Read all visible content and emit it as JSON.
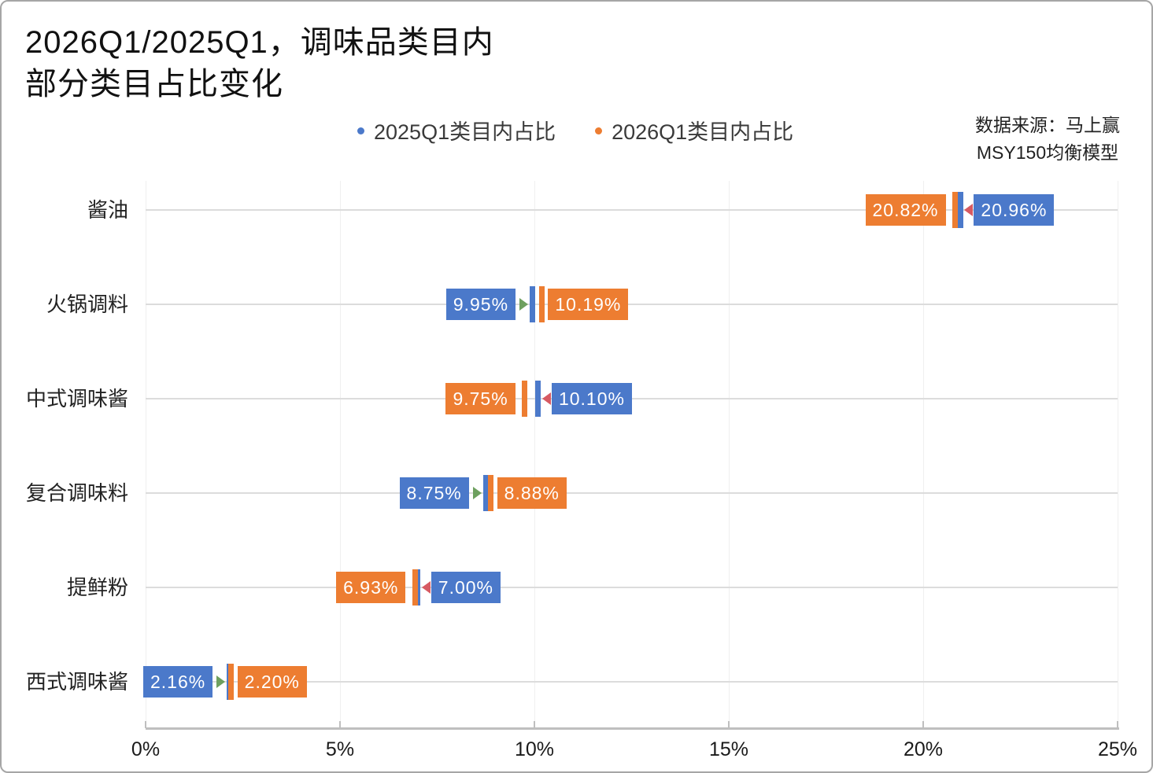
{
  "title": {
    "line1": "2026Q1/2025Q1，调味品类目内",
    "line2": "部分类目占比变化"
  },
  "legend": {
    "items": [
      {
        "label": "2025Q1类目内占比",
        "color": "#4b79ca"
      },
      {
        "label": "2026Q1类目内占比",
        "color": "#ed7d31"
      }
    ]
  },
  "source": {
    "line1": "数据来源：马上赢",
    "line2": "MSY150均衡模型"
  },
  "chart_data": {
    "type": "dumbbell",
    "title": "2026Q1/2025Q1，调味品类目内部分类目占比变化",
    "categories": [
      "酱油",
      "火锅调料",
      "中式调味酱",
      "复合调味料",
      "提鲜粉",
      "西式调味酱"
    ],
    "series": [
      {
        "name": "2025Q1类目内占比",
        "color": "#4b79ca",
        "values": [
          20.96,
          9.95,
          10.1,
          8.75,
          7.0,
          2.16
        ]
      },
      {
        "name": "2026Q1类目内占比",
        "color": "#ed7d31",
        "values": [
          20.82,
          10.19,
          9.75,
          8.88,
          6.93,
          2.2
        ]
      }
    ],
    "value_labels": [
      [
        "20.96%",
        "20.82%"
      ],
      [
        "9.95%",
        "10.19%"
      ],
      [
        "10.10%",
        "9.75%"
      ],
      [
        "8.75%",
        "8.88%"
      ],
      [
        "7.00%",
        "6.93%"
      ],
      [
        "2.16%",
        "2.20%"
      ]
    ],
    "change": [
      "down",
      "up",
      "down",
      "up",
      "down",
      "up"
    ],
    "change_colors": {
      "up": "#6ea05f",
      "down": "#d75a62"
    },
    "x_ticks": [
      0,
      5,
      10,
      15,
      20,
      25
    ],
    "x_tick_labels": [
      "0%",
      "5%",
      "10%",
      "15%",
      "20%",
      "25%"
    ],
    "xlim": [
      0,
      25
    ],
    "grid": true,
    "legend_position": "top-center"
  }
}
